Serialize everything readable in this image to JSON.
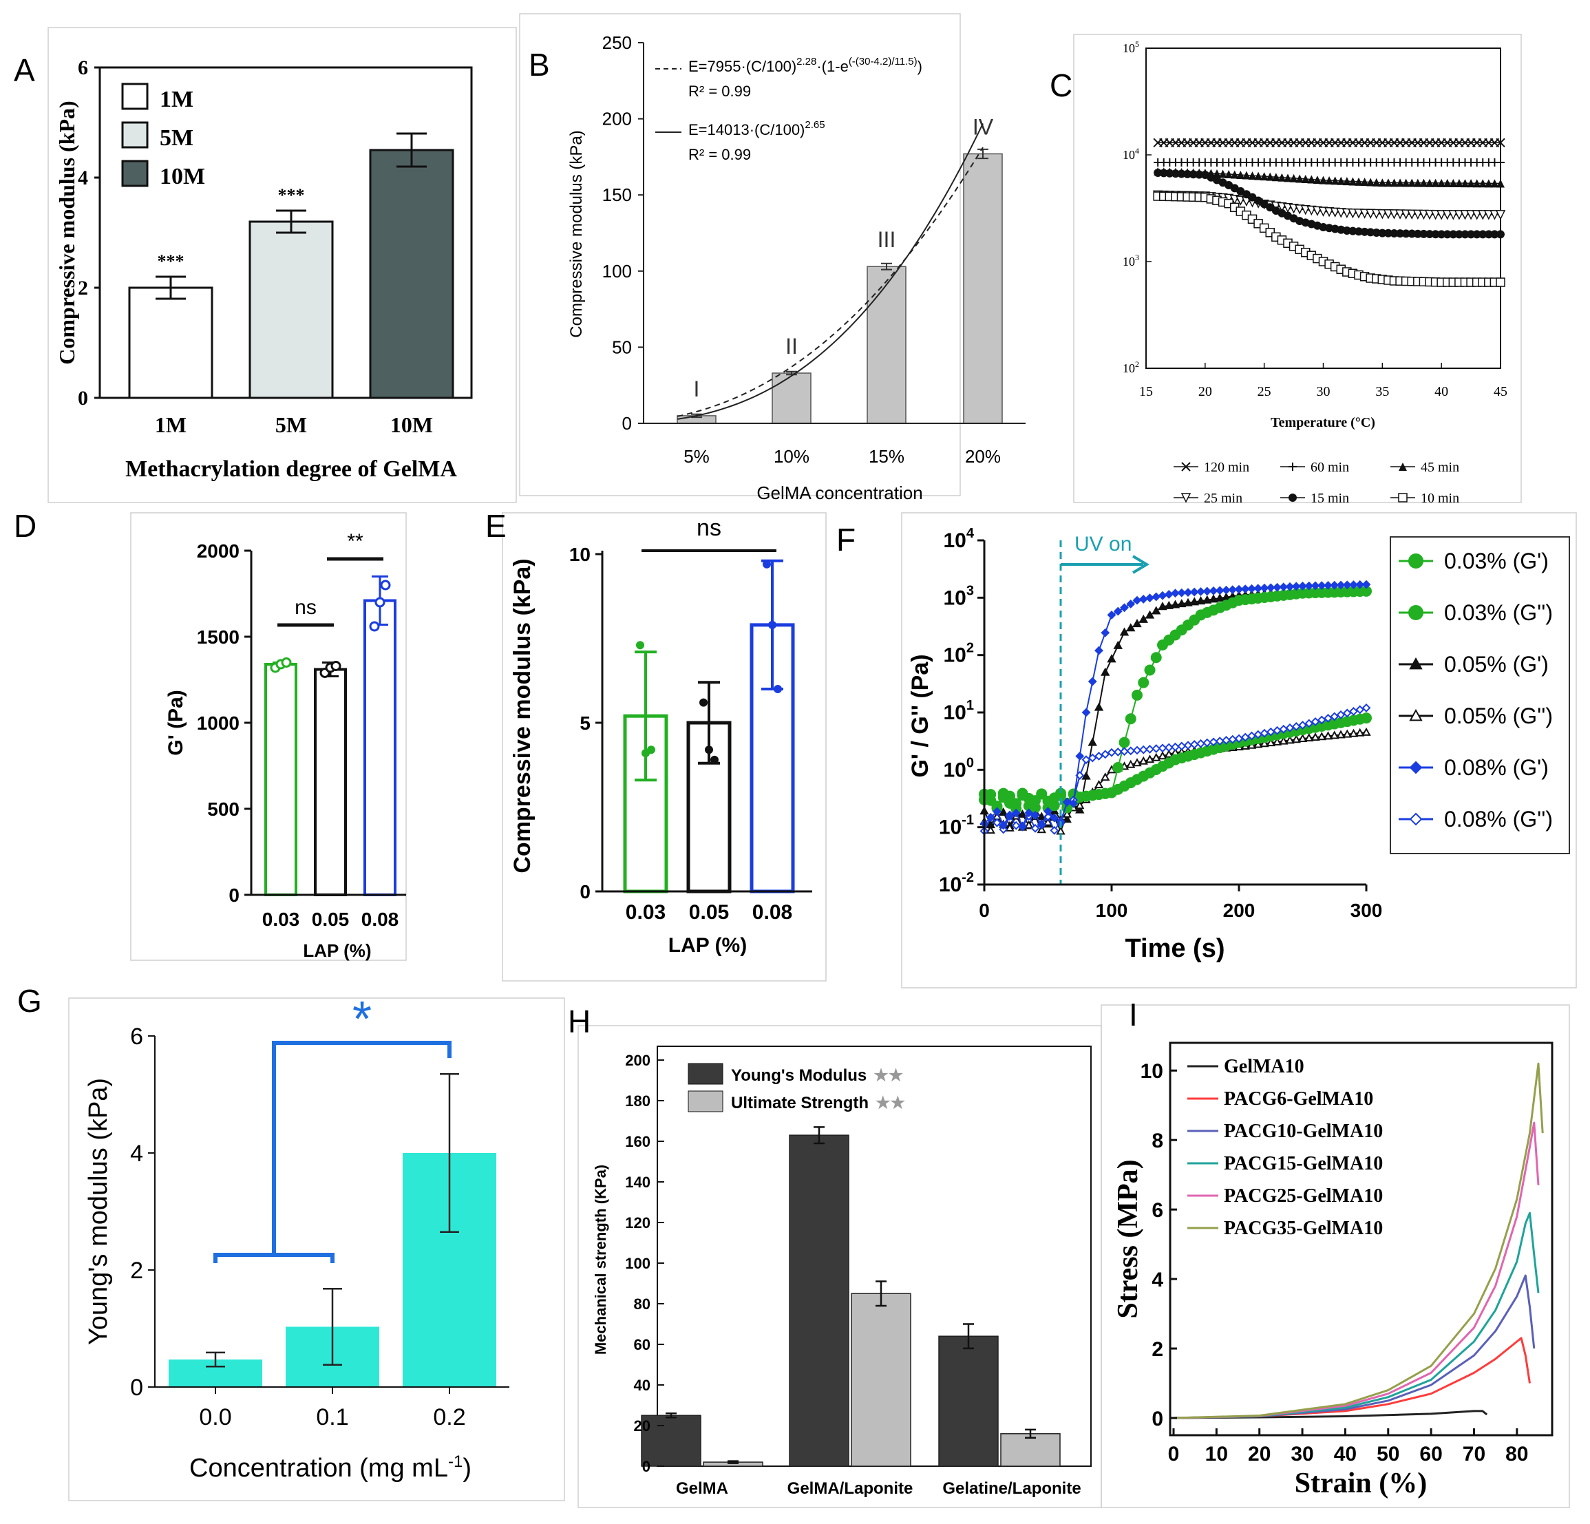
{
  "panel_letters": {
    "a": "A",
    "b": "B",
    "c": "C",
    "d": "D",
    "e": "E",
    "f": "F",
    "g": "G",
    "h": "H",
    "i": "I"
  },
  "colors": {
    "green": "#22b022",
    "blue": "#1a3de0",
    "black": "#111111",
    "cyan": "#2ee8d6",
    "bracket": "#1e6fe0",
    "dark": "#3a3a3a",
    "light": "#bdbdbd",
    "uv": "#1aa0b0",
    "panelA_5M": "#dfe6e6",
    "panelA_10M": "#4f6060"
  },
  "chart_data": [
    {
      "id": "A",
      "type": "bar",
      "title": "",
      "xlabel": "Methacrylation degree of GelMA",
      "ylabel": "Compressive modulus (kPa)",
      "ylim": [
        0,
        6
      ],
      "yticks": [
        "0",
        "2",
        "4",
        "6"
      ],
      "categories": [
        "1M",
        "5M",
        "10M"
      ],
      "values": [
        2.0,
        3.2,
        4.5
      ],
      "errors": [
        0.2,
        0.2,
        0.3
      ],
      "significance": [
        "***",
        "***",
        ""
      ],
      "legend": [
        "1M",
        "5M",
        "10M"
      ]
    },
    {
      "id": "B",
      "type": "bar",
      "xlabel": "GelMA concentration",
      "ylabel": "Compressive modulus (kPa)",
      "ylim": [
        0,
        250
      ],
      "yticks": [
        "0",
        "50",
        "100",
        "150",
        "200",
        "250"
      ],
      "categories": [
        "5%",
        "10%",
        "15%",
        "20%"
      ],
      "values": [
        5,
        33,
        103,
        177
      ],
      "errors": [
        1,
        1,
        2,
        3
      ],
      "roman": [
        "I",
        "II",
        "III",
        "IV"
      ],
      "fit1_label": "E=7955·(C/100)",
      "fit1_exp": "2.28",
      "fit1_tail": "·(1-e",
      "fit1_exp2": "(-(30-4.2)/11.5)",
      "fit1_close": ")",
      "fit1_r2": "R² = 0.99",
      "fit2_label": "E=14013·(C/100)",
      "fit2_exp": "2.65",
      "fit2_r2": "R² = 0.99"
    },
    {
      "id": "C",
      "type": "line",
      "xlabel": "Temperature (°C)",
      "ylabel": "",
      "xlim": [
        15,
        45
      ],
      "xticks": [
        "15",
        "20",
        "25",
        "30",
        "35",
        "40",
        "45"
      ],
      "ylog": [
        2,
        5
      ],
      "ytick_base": [
        "10",
        "10",
        "10",
        "10"
      ],
      "ytick_exp": [
        "5",
        "4",
        "3",
        "2"
      ],
      "series": [
        {
          "name": "120 min",
          "x": [
            16,
            45
          ],
          "y": [
            13000,
            13000
          ]
        },
        {
          "name": "60 min",
          "x": [
            16,
            45
          ],
          "y": [
            8500,
            8500
          ]
        },
        {
          "name": "45 min",
          "x": [
            16,
            20,
            25,
            30,
            35,
            45
          ],
          "y": [
            7000,
            6800,
            6300,
            5800,
            5500,
            5400
          ]
        },
        {
          "name": "25 min",
          "x": [
            16,
            20,
            22,
            24,
            26,
            28,
            30,
            32,
            35,
            40,
            45
          ],
          "y": [
            4200,
            4100,
            3900,
            3600,
            3300,
            3100,
            2950,
            2850,
            2800,
            2750,
            2750
          ]
        },
        {
          "name": "15 min",
          "x": [
            16,
            20,
            22,
            24,
            26,
            28,
            30,
            32,
            35,
            40,
            45
          ],
          "y": [
            6800,
            6500,
            5200,
            4000,
            3000,
            2400,
            2100,
            1950,
            1850,
            1800,
            1800
          ]
        },
        {
          "name": "10 min",
          "x": [
            16,
            20,
            22,
            24,
            26,
            28,
            30,
            32,
            34,
            36,
            40,
            45
          ],
          "y": [
            4100,
            4000,
            3500,
            2500,
            1700,
            1300,
            1000,
            800,
            700,
            660,
            640,
            640
          ]
        }
      ],
      "legend": [
        "120 min",
        "60 min",
        "45 min",
        "25 min",
        "15 min",
        "10 min"
      ]
    },
    {
      "id": "D",
      "type": "bar",
      "xlabel": "LAP (%)",
      "ylabel": "G' (Pa)",
      "ylim": [
        0,
        2000
      ],
      "yticks": [
        "0",
        "500",
        "1000",
        "1500",
        "2000"
      ],
      "categories": [
        "0.03",
        "0.05",
        "0.08"
      ],
      "values": [
        1340,
        1310,
        1710
      ],
      "errors": [
        10,
        40,
        140
      ],
      "points": [
        [
          1320,
          1340,
          1350
        ],
        [
          1290,
          1320,
          1330
        ],
        [
          1560,
          1700,
          1800
        ]
      ],
      "comparisons": [
        {
          "label": "ns",
          "from": 0,
          "to": 1
        },
        {
          "label": "**",
          "from": 1,
          "to": 2
        }
      ]
    },
    {
      "id": "E",
      "type": "bar",
      "xlabel": "LAP (%)",
      "ylabel": "Compressive modulus (kPa)",
      "ylim": [
        0,
        10
      ],
      "yticks": [
        "0",
        "5",
        "10"
      ],
      "categories": [
        "0.03",
        "0.05",
        "0.08"
      ],
      "values": [
        5.2,
        5.0,
        7.9
      ],
      "errors": [
        1.9,
        1.2,
        1.9
      ],
      "points": [
        [
          7.3,
          4.1,
          4.2
        ],
        [
          5.6,
          4.2,
          3.9
        ],
        [
          9.7,
          7.9,
          6.0
        ]
      ],
      "comparisons": [
        {
          "label": "ns",
          "from": 0,
          "to": 2
        }
      ]
    },
    {
      "id": "F",
      "type": "line",
      "xlabel": "Time (s)",
      "ylabel": "G' / G'' (Pa)",
      "xlim": [
        0,
        300
      ],
      "xticks": [
        "0",
        "100",
        "200",
        "300"
      ],
      "ylog": [
        -2,
        4
      ],
      "ytick_base": [
        "10",
        "10",
        "10",
        "10",
        "10",
        "10",
        "10"
      ],
      "ytick_exp": [
        "4",
        "3",
        "2",
        "1",
        "0",
        "-1",
        "-2"
      ],
      "uv_label": "UV on",
      "uv_time": 60,
      "series": [
        {
          "name": "0.03% (G')",
          "x": [
            0,
            60,
            100,
            110,
            120,
            140,
            170,
            200,
            250,
            300
          ],
          "y": [
            0.3,
            0.3,
            0.4,
            3,
            20,
            150,
            500,
            900,
            1200,
            1300
          ]
        },
        {
          "name": "0.03% (G'')",
          "x": [
            0,
            60,
            100,
            150,
            200,
            250,
            300
          ],
          "y": [
            0.3,
            0.3,
            0.4,
            1.5,
            3,
            5,
            8
          ]
        },
        {
          "name": "0.05% (G')",
          "x": [
            0,
            60,
            75,
            85,
            95,
            110,
            140,
            200,
            250,
            300
          ],
          "y": [
            0.15,
            0.15,
            0.2,
            3,
            50,
            250,
            700,
            1100,
            1300,
            1400
          ]
        },
        {
          "name": "0.05% (G'')",
          "x": [
            0,
            60,
            80,
            100,
            150,
            200,
            250,
            300
          ],
          "y": [
            0.12,
            0.12,
            0.3,
            1,
            2,
            2.5,
            3.5,
            4.5
          ]
        },
        {
          "name": "0.08% (G')",
          "x": [
            0,
            60,
            70,
            80,
            90,
            100,
            120,
            150,
            200,
            250,
            300
          ],
          "y": [
            0.15,
            0.15,
            0.3,
            10,
            120,
            500,
            900,
            1200,
            1400,
            1600,
            1700
          ]
        },
        {
          "name": "0.08% (G'')",
          "x": [
            0,
            60,
            80,
            100,
            150,
            200,
            250,
            300
          ],
          "y": [
            0.12,
            0.12,
            1.5,
            2,
            2.5,
            3.5,
            6,
            12
          ]
        }
      ],
      "legend": [
        "0.03% (G')",
        "0.03% (G'')",
        "0.05% (G')",
        "0.05% (G'')",
        "0.08% (G')",
        "0.08% (G'')"
      ]
    },
    {
      "id": "G",
      "type": "bar",
      "xlabel": "Concentration (mg mL",
      "xlabel_sup": "-1",
      "xlabel_tail": ")",
      "ylabel": "Young's modulus (kPa)",
      "ylim": [
        0,
        6
      ],
      "yticks": [
        "0",
        "2",
        "4",
        "6"
      ],
      "categories": [
        "0.0",
        "0.1",
        "0.2"
      ],
      "values": [
        0.47,
        1.03,
        4.0
      ],
      "errors": [
        0.12,
        0.65,
        1.35
      ],
      "significance": "*"
    },
    {
      "id": "H",
      "type": "bar",
      "xlabel": "",
      "ylabel": "Mechanical strength (KPa)",
      "ylim": [
        0,
        200
      ],
      "yticks": [
        "0",
        "20",
        "40",
        "60",
        "80",
        "100",
        "120",
        "140",
        "160",
        "180",
        "200"
      ],
      "categories": [
        "GelMA",
        "GelMA/Laponite",
        "Gelatine/Laponite"
      ],
      "series": [
        {
          "name": "Young's Modulus",
          "values": [
            25,
            163,
            64
          ],
          "errors": [
            1,
            4,
            6
          ]
        },
        {
          "name": "Ultimate Strength",
          "values": [
            2,
            85,
            16
          ],
          "errors": [
            0.5,
            6,
            2
          ]
        }
      ],
      "legend_marks": "★★"
    },
    {
      "id": "I",
      "type": "line",
      "xlabel": "Strain (%)",
      "ylabel": "Stress (MPa)",
      "xlim": [
        0,
        85
      ],
      "xticks": [
        "0",
        "10",
        "20",
        "30",
        "40",
        "50",
        "60",
        "70",
        "80"
      ],
      "ylim": [
        0,
        10.5
      ],
      "yticks": [
        "0",
        "2",
        "4",
        "6",
        "8",
        "10"
      ],
      "series": [
        {
          "name": "GelMA10",
          "color": "#222222",
          "x": [
            0,
            20,
            40,
            60,
            70,
            72,
            73
          ],
          "y": [
            0,
            0.02,
            0.05,
            0.12,
            0.2,
            0.2,
            0.1
          ]
        },
        {
          "name": "PACG6-GelMA10",
          "color": "#ff3b3b",
          "x": [
            0,
            20,
            40,
            50,
            60,
            70,
            75,
            80,
            81,
            82,
            83
          ],
          "y": [
            0,
            0.05,
            0.2,
            0.4,
            0.7,
            1.3,
            1.7,
            2.2,
            2.3,
            1.8,
            1.0
          ]
        },
        {
          "name": "PACG10-GelMA10",
          "color": "#5a60b8",
          "x": [
            0,
            20,
            40,
            50,
            60,
            70,
            75,
            80,
            82,
            83,
            84
          ],
          "y": [
            0,
            0.05,
            0.25,
            0.5,
            0.95,
            1.8,
            2.5,
            3.5,
            4.1,
            3.2,
            2.0
          ]
        },
        {
          "name": "PACG15-GelMA10",
          "color": "#1fa39a",
          "x": [
            0,
            20,
            40,
            50,
            60,
            70,
            75,
            80,
            82,
            83,
            84,
            85
          ],
          "y": [
            0,
            0.05,
            0.3,
            0.6,
            1.1,
            2.2,
            3.1,
            4.5,
            5.6,
            5.9,
            4.7,
            3.6
          ]
        },
        {
          "name": "PACG25-GelMA10",
          "color": "#e066b0",
          "x": [
            0,
            20,
            40,
            50,
            60,
            70,
            75,
            80,
            83,
            84,
            85
          ],
          "y": [
            0,
            0.06,
            0.35,
            0.7,
            1.3,
            2.6,
            3.8,
            5.8,
            7.8,
            8.5,
            6.7
          ]
        },
        {
          "name": "PACG35-GelMA10",
          "color": "#95a04c",
          "x": [
            0,
            20,
            40,
            50,
            60,
            70,
            75,
            80,
            83,
            85,
            86
          ],
          "y": [
            0,
            0.07,
            0.4,
            0.8,
            1.5,
            3.0,
            4.3,
            6.3,
            8.2,
            10.2,
            8.2
          ]
        }
      ]
    }
  ]
}
